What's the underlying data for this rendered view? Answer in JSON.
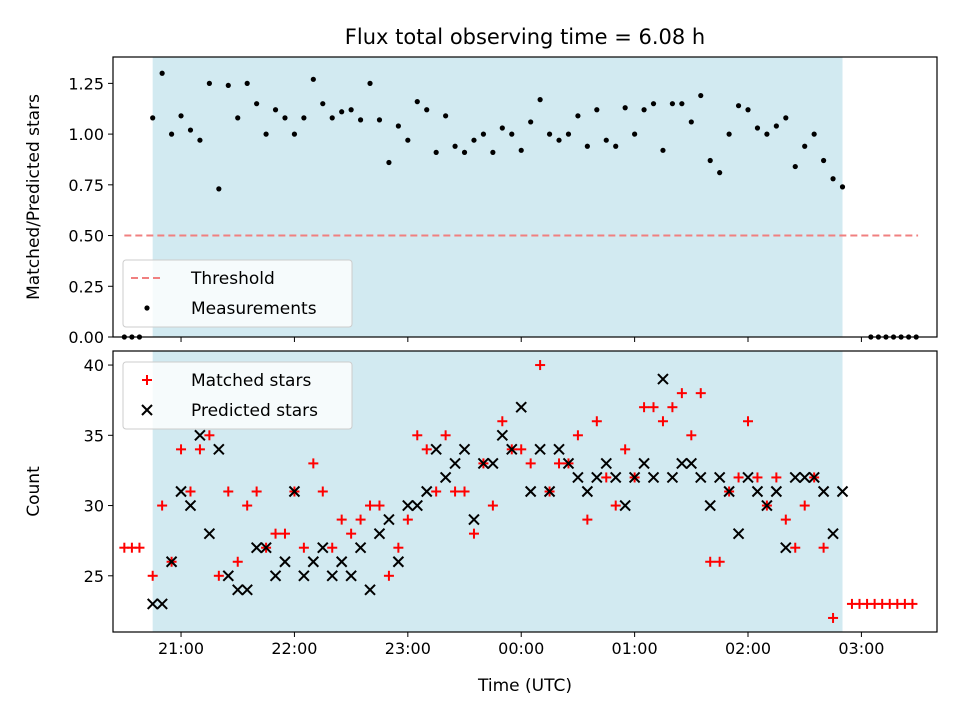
{
  "chart_data": [
    {
      "type": "scatter",
      "title": "Flux total observing time = 6.08 h",
      "xlabel": "",
      "ylabel": "Matched/Predicted stars",
      "x_range": [
        "20:24",
        "03:40"
      ],
      "ylim": [
        0,
        1.38
      ],
      "yticks": [
        "0.00",
        "0.25",
        "0.50",
        "0.75",
        "1.00",
        "1.25"
      ],
      "xticks": [
        "21:00",
        "22:00",
        "23:00",
        "00:00",
        "01:00",
        "02:00",
        "03:00"
      ],
      "x_tick_labels_visible": false,
      "shaded_region": [
        "20:45",
        "02:50"
      ],
      "colors": {
        "shade": "#add8e6",
        "threshold": "#f08080",
        "measurement": "#000000"
      },
      "legend_position": "lower-left",
      "threshold": {
        "name": "Threshold",
        "y": 0.5,
        "x_range": [
          "20:30",
          "03:30"
        ],
        "style": "dashed"
      },
      "series": [
        {
          "name": "Measurements",
          "marker": "dot",
          "points": [
            [
              "20:30",
              0
            ],
            [
              "20:34",
              0
            ],
            [
              "20:38",
              0
            ],
            [
              "20:45",
              1.08
            ],
            [
              "20:50",
              1.3
            ],
            [
              "20:55",
              1.0
            ],
            [
              "21:00",
              1.09
            ],
            [
              "21:05",
              1.02
            ],
            [
              "21:10",
              0.97
            ],
            [
              "21:15",
              1.25
            ],
            [
              "21:20",
              0.73
            ],
            [
              "21:25",
              1.24
            ],
            [
              "21:30",
              1.08
            ],
            [
              "21:35",
              1.25
            ],
            [
              "21:40",
              1.15
            ],
            [
              "21:45",
              1.0
            ],
            [
              "21:50",
              1.12
            ],
            [
              "21:55",
              1.08
            ],
            [
              "22:00",
              1.0
            ],
            [
              "22:05",
              1.08
            ],
            [
              "22:10",
              1.27
            ],
            [
              "22:15",
              1.15
            ],
            [
              "22:20",
              1.08
            ],
            [
              "22:25",
              1.11
            ],
            [
              "22:30",
              1.12
            ],
            [
              "22:35",
              1.07
            ],
            [
              "22:40",
              1.25
            ],
            [
              "22:45",
              1.07
            ],
            [
              "22:50",
              0.86
            ],
            [
              "22:55",
              1.04
            ],
            [
              "23:00",
              0.97
            ],
            [
              "23:05",
              1.16
            ],
            [
              "23:10",
              1.12
            ],
            [
              "23:15",
              0.91
            ],
            [
              "23:20",
              1.09
            ],
            [
              "23:25",
              0.94
            ],
            [
              "23:30",
              0.91
            ],
            [
              "23:35",
              0.97
            ],
            [
              "23:40",
              1.0
            ],
            [
              "23:45",
              0.91
            ],
            [
              "23:50",
              1.03
            ],
            [
              "23:55",
              1.0
            ],
            [
              "00:00",
              0.92
            ],
            [
              "00:05",
              1.06
            ],
            [
              "00:10",
              1.17
            ],
            [
              "00:15",
              1.0
            ],
            [
              "00:20",
              0.97
            ],
            [
              "00:25",
              1.0
            ],
            [
              "00:30",
              1.09
            ],
            [
              "00:35",
              0.94
            ],
            [
              "00:40",
              1.12
            ],
            [
              "00:45",
              0.97
            ],
            [
              "00:50",
              0.94
            ],
            [
              "00:55",
              1.13
            ],
            [
              "01:00",
              1.0
            ],
            [
              "01:05",
              1.12
            ],
            [
              "01:10",
              1.15
            ],
            [
              "01:15",
              0.92
            ],
            [
              "01:20",
              1.15
            ],
            [
              "01:25",
              1.15
            ],
            [
              "01:30",
              1.06
            ],
            [
              "01:35",
              1.19
            ],
            [
              "01:40",
              0.87
            ],
            [
              "01:45",
              0.81
            ],
            [
              "01:50",
              1.0
            ],
            [
              "01:55",
              1.14
            ],
            [
              "02:00",
              1.12
            ],
            [
              "02:05",
              1.03
            ],
            [
              "02:10",
              1.0
            ],
            [
              "02:15",
              1.04
            ],
            [
              "02:20",
              1.08
            ],
            [
              "02:25",
              0.84
            ],
            [
              "02:30",
              0.94
            ],
            [
              "02:35",
              1.0
            ],
            [
              "02:40",
              0.87
            ],
            [
              "02:45",
              0.78
            ],
            [
              "02:50",
              0.74
            ],
            [
              "03:05",
              0
            ],
            [
              "03:09",
              0
            ],
            [
              "03:13",
              0
            ],
            [
              "03:17",
              0
            ],
            [
              "03:21",
              0
            ],
            [
              "03:25",
              0
            ],
            [
              "03:29",
              0
            ]
          ]
        }
      ]
    },
    {
      "type": "scatter",
      "title": "",
      "xlabel": "Time (UTC)",
      "ylabel": "Count",
      "x_range": [
        "20:24",
        "03:40"
      ],
      "ylim": [
        21,
        41
      ],
      "yticks": [
        "25",
        "30",
        "35",
        "40"
      ],
      "xticks": [
        "21:00",
        "22:00",
        "23:00",
        "00:00",
        "01:00",
        "02:00",
        "03:00"
      ],
      "shaded_region": [
        "20:45",
        "02:50"
      ],
      "colors": {
        "shade": "#add8e6",
        "matched": "#ff0000",
        "predicted": "#000000"
      },
      "legend_position": "upper-left",
      "series": [
        {
          "name": "Matched stars",
          "marker": "plus",
          "points": [
            [
              "20:30",
              27
            ],
            [
              "20:34",
              27
            ],
            [
              "20:38",
              27
            ],
            [
              "20:45",
              25
            ],
            [
              "20:50",
              30
            ],
            [
              "20:55",
              26
            ],
            [
              "21:00",
              34
            ],
            [
              "21:05",
              31
            ],
            [
              "21:10",
              34
            ],
            [
              "21:15",
              35
            ],
            [
              "21:20",
              25
            ],
            [
              "21:25",
              31
            ],
            [
              "21:30",
              26
            ],
            [
              "21:35",
              30
            ],
            [
              "21:40",
              31
            ],
            [
              "21:45",
              27
            ],
            [
              "21:50",
              28
            ],
            [
              "21:55",
              28
            ],
            [
              "22:00",
              31
            ],
            [
              "22:05",
              27
            ],
            [
              "22:10",
              33
            ],
            [
              "22:15",
              31
            ],
            [
              "22:20",
              27
            ],
            [
              "22:25",
              29
            ],
            [
              "22:30",
              28
            ],
            [
              "22:35",
              29
            ],
            [
              "22:40",
              30
            ],
            [
              "22:45",
              30
            ],
            [
              "22:50",
              25
            ],
            [
              "22:55",
              27
            ],
            [
              "23:00",
              29
            ],
            [
              "23:05",
              35
            ],
            [
              "23:10",
              34
            ],
            [
              "23:15",
              31
            ],
            [
              "23:20",
              35
            ],
            [
              "23:25",
              31
            ],
            [
              "23:30",
              31
            ],
            [
              "23:35",
              28
            ],
            [
              "23:40",
              33
            ],
            [
              "23:45",
              30
            ],
            [
              "23:50",
              36
            ],
            [
              "23:55",
              34
            ],
            [
              "00:00",
              34
            ],
            [
              "00:05",
              33
            ],
            [
              "00:10",
              40
            ],
            [
              "00:15",
              31
            ],
            [
              "00:20",
              33
            ],
            [
              "00:25",
              33
            ],
            [
              "00:30",
              35
            ],
            [
              "00:35",
              29
            ],
            [
              "00:40",
              36
            ],
            [
              "00:45",
              32
            ],
            [
              "00:50",
              30
            ],
            [
              "00:55",
              34
            ],
            [
              "01:00",
              32
            ],
            [
              "01:05",
              37
            ],
            [
              "01:10",
              37
            ],
            [
              "01:15",
              36
            ],
            [
              "01:20",
              37
            ],
            [
              "01:25",
              38
            ],
            [
              "01:30",
              35
            ],
            [
              "01:35",
              38
            ],
            [
              "01:40",
              26
            ],
            [
              "01:45",
              26
            ],
            [
              "01:50",
              31
            ],
            [
              "01:55",
              32
            ],
            [
              "02:00",
              36
            ],
            [
              "02:05",
              32
            ],
            [
              "02:10",
              30
            ],
            [
              "02:15",
              32
            ],
            [
              "02:20",
              29
            ],
            [
              "02:25",
              27
            ],
            [
              "02:30",
              30
            ],
            [
              "02:35",
              32
            ],
            [
              "02:40",
              27
            ],
            [
              "02:45",
              22
            ],
            [
              "02:55",
              23
            ],
            [
              "02:59",
              23
            ],
            [
              "03:03",
              23
            ],
            [
              "03:07",
              23
            ],
            [
              "03:11",
              23
            ],
            [
              "03:15",
              23
            ],
            [
              "03:19",
              23
            ],
            [
              "03:23",
              23
            ],
            [
              "03:27",
              23
            ]
          ]
        },
        {
          "name": "Predicted stars",
          "marker": "x",
          "points": [
            [
              "20:45",
              23
            ],
            [
              "20:50",
              23
            ],
            [
              "20:55",
              26
            ],
            [
              "21:00",
              31
            ],
            [
              "21:05",
              30
            ],
            [
              "21:10",
              35
            ],
            [
              "21:15",
              28
            ],
            [
              "21:20",
              34
            ],
            [
              "21:25",
              25
            ],
            [
              "21:30",
              24
            ],
            [
              "21:35",
              24
            ],
            [
              "21:40",
              27
            ],
            [
              "21:45",
              27
            ],
            [
              "21:50",
              25
            ],
            [
              "21:55",
              26
            ],
            [
              "22:00",
              31
            ],
            [
              "22:05",
              25
            ],
            [
              "22:10",
              26
            ],
            [
              "22:15",
              27
            ],
            [
              "22:20",
              25
            ],
            [
              "22:25",
              26
            ],
            [
              "22:30",
              25
            ],
            [
              "22:35",
              27
            ],
            [
              "22:40",
              24
            ],
            [
              "22:45",
              28
            ],
            [
              "22:50",
              29
            ],
            [
              "22:55",
              26
            ],
            [
              "23:00",
              30
            ],
            [
              "23:05",
              30
            ],
            [
              "23:10",
              31
            ],
            [
              "23:15",
              34
            ],
            [
              "23:20",
              32
            ],
            [
              "23:25",
              33
            ],
            [
              "23:30",
              34
            ],
            [
              "23:35",
              29
            ],
            [
              "23:40",
              33
            ],
            [
              "23:45",
              33
            ],
            [
              "23:50",
              35
            ],
            [
              "23:55",
              34
            ],
            [
              "00:00",
              37
            ],
            [
              "00:05",
              31
            ],
            [
              "00:10",
              34
            ],
            [
              "00:15",
              31
            ],
            [
              "00:20",
              34
            ],
            [
              "00:25",
              33
            ],
            [
              "00:30",
              32
            ],
            [
              "00:35",
              31
            ],
            [
              "00:40",
              32
            ],
            [
              "00:45",
              33
            ],
            [
              "00:50",
              32
            ],
            [
              "00:55",
              30
            ],
            [
              "01:00",
              32
            ],
            [
              "01:05",
              33
            ],
            [
              "01:10",
              32
            ],
            [
              "01:15",
              39
            ],
            [
              "01:20",
              32
            ],
            [
              "01:25",
              33
            ],
            [
              "01:30",
              33
            ],
            [
              "01:35",
              32
            ],
            [
              "01:40",
              30
            ],
            [
              "01:45",
              32
            ],
            [
              "01:50",
              31
            ],
            [
              "01:55",
              28
            ],
            [
              "02:00",
              32
            ],
            [
              "02:05",
              31
            ],
            [
              "02:10",
              30
            ],
            [
              "02:15",
              31
            ],
            [
              "02:20",
              27
            ],
            [
              "02:25",
              32
            ],
            [
              "02:30",
              32
            ],
            [
              "02:35",
              32
            ],
            [
              "02:40",
              31
            ],
            [
              "02:45",
              28
            ],
            [
              "02:50",
              31
            ]
          ]
        }
      ]
    }
  ]
}
